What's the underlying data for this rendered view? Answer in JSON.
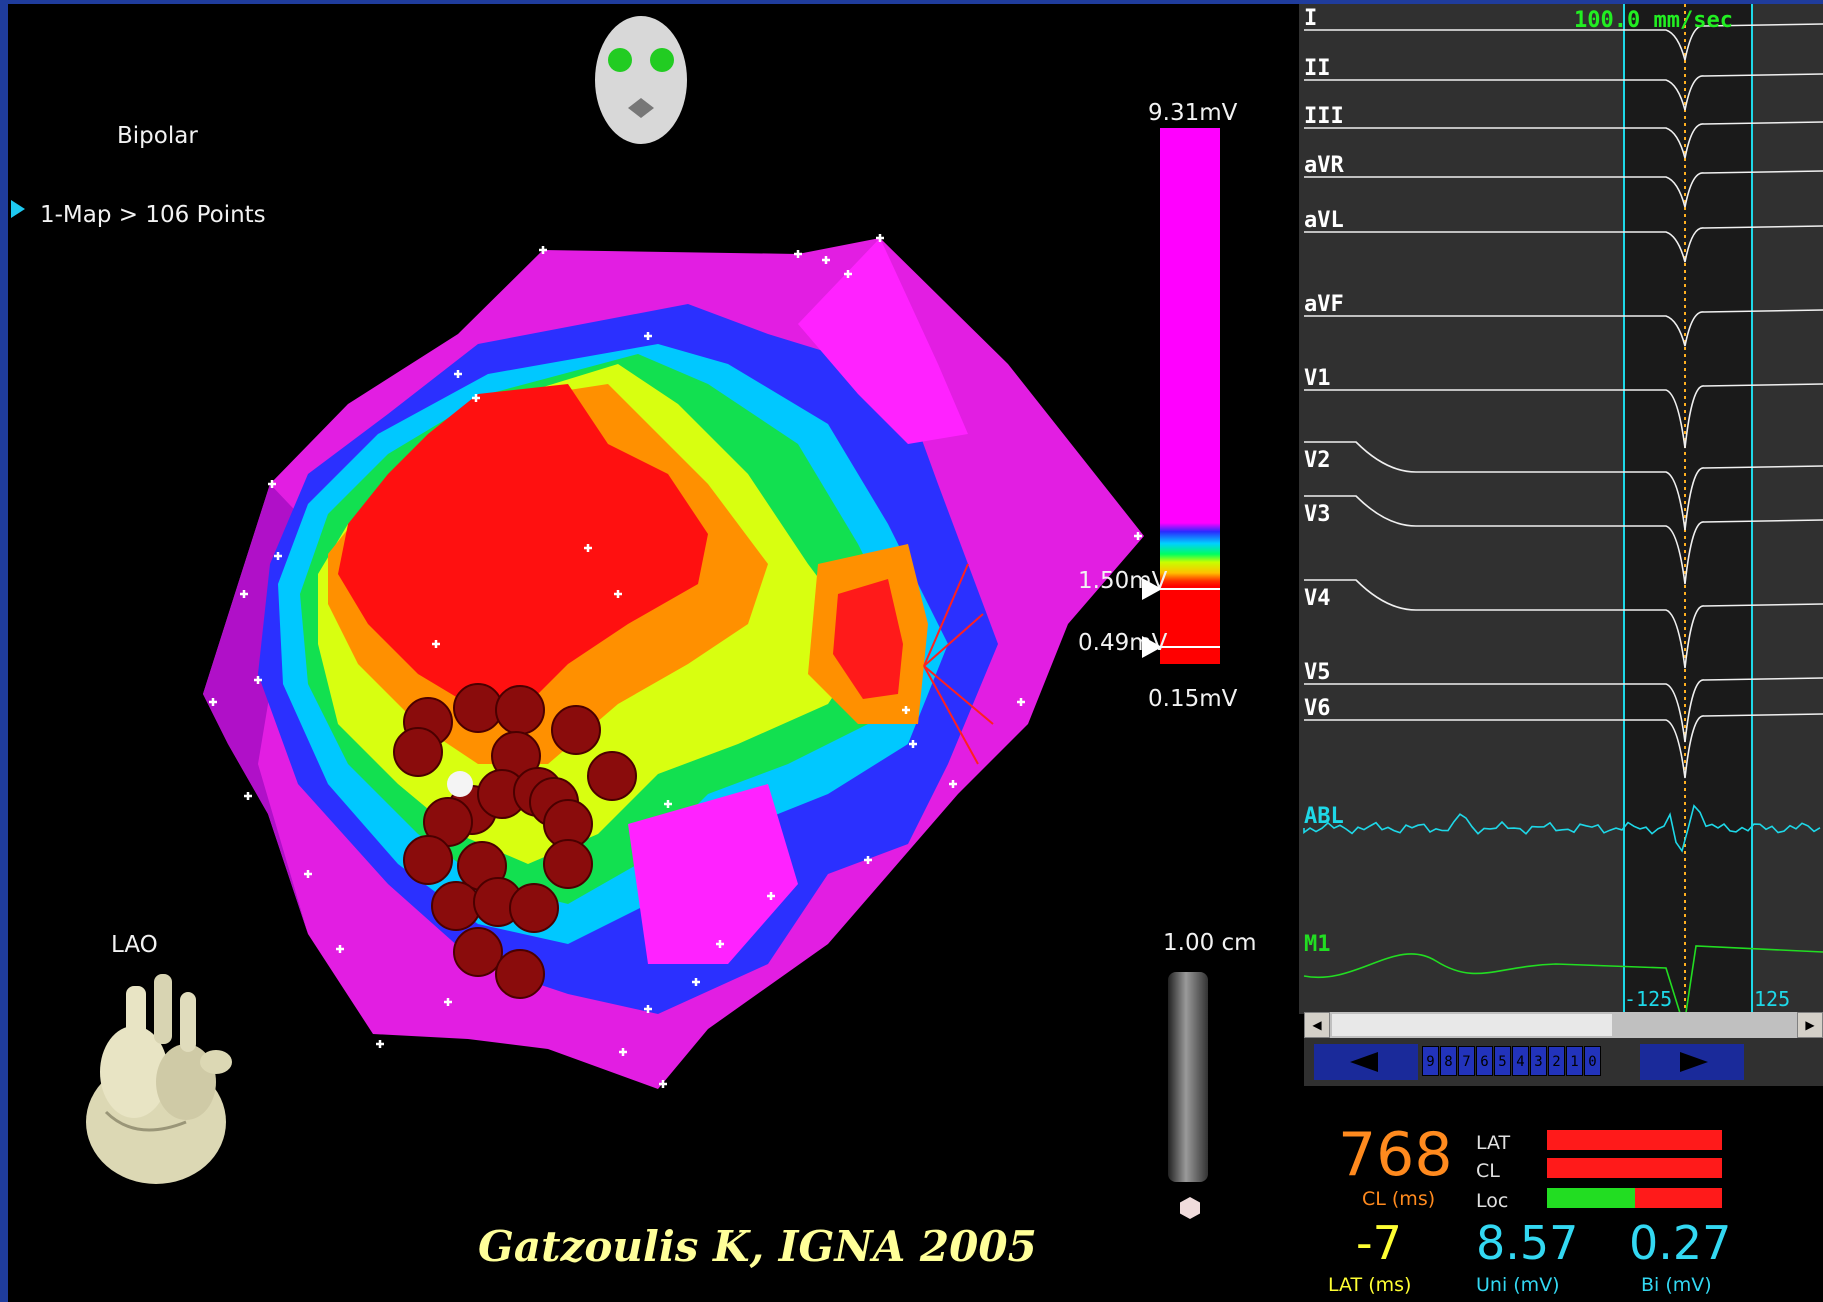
{
  "map": {
    "mode": "Bipolar",
    "map_count": "1-Map > 106 Points",
    "view": "LAO",
    "credit": "Gatzoulis K, IGNA 2005"
  },
  "scale": {
    "max": "9.31mV",
    "upper_threshold": "1.50mV",
    "lower_threshold": "0.49mV",
    "min": "0.15mV",
    "length": "1.00 cm"
  },
  "ecg": {
    "speed": "100.0 mm/sec",
    "leads": [
      "I",
      "II",
      "III",
      "aVR",
      "aVL",
      "aVF",
      "V1",
      "V2",
      "V3",
      "V4",
      "V5",
      "V6",
      "ABL",
      "M1"
    ],
    "window_start": "-125",
    "window_end": "125",
    "pager_digits": [
      "9",
      "8",
      "7",
      "6",
      "5",
      "4",
      "3",
      "2",
      "1",
      "0"
    ]
  },
  "readout": {
    "cl_value": "768",
    "cl_label": "CL (ms)",
    "lat_value": "-7",
    "lat_label": "LAT (ms)",
    "uni_value": "8.57",
    "uni_label": "Uni (mV)",
    "bi_value": "0.27",
    "bi_label": "Bi (mV)",
    "bars": [
      {
        "label": "LAT"
      },
      {
        "label": "CL"
      },
      {
        "label": "Loc",
        "green_fraction": 0.5
      }
    ]
  },
  "colors": {
    "cl_value": "#ff8a1e",
    "lat_value": "#ffff33",
    "uni_bi_value": "#33d8f2"
  }
}
